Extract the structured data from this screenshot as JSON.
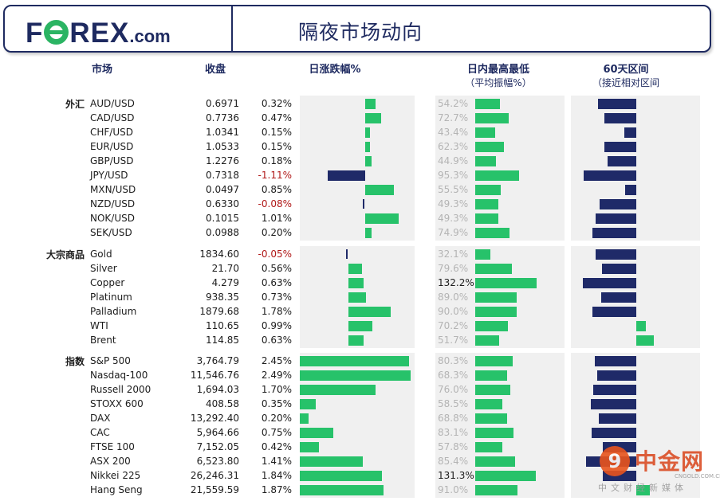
{
  "header": {
    "title": "隔夜市场动向",
    "logo_f": "F",
    "logo_rest": "REX",
    "logo_dotcom": ".com"
  },
  "columns": {
    "market": "市场",
    "close": "收盘",
    "daily_change": "日涨跌幅%",
    "intraday": "日内最高最低",
    "intraday_sub": "（平均振幅%）",
    "range60": "60天区间",
    "range60_sub": "（接近相对区间"
  },
  "colors": {
    "positive": "#27c26a",
    "negative_text": "#b01818",
    "navy": "#1f2a68",
    "panel": "#f0f0f0"
  },
  "chart_data": {
    "type": "table",
    "groups": [
      {
        "label": "外汇",
        "rows": [
          {
            "name": "AUD/USD",
            "close": "0.6971",
            "change": 0.32,
            "change_label": "0.32%",
            "range_pct": 54.2,
            "range_label": "54.2%",
            "pos60": 0.46
          },
          {
            "name": "CAD/USD",
            "close": "0.7736",
            "change": 0.47,
            "change_label": "0.47%",
            "range_pct": 72.7,
            "range_label": "72.7%",
            "pos60": 0.38
          },
          {
            "name": "CHF/USD",
            "close": "1.0341",
            "change": 0.15,
            "change_label": "0.15%",
            "range_pct": 43.4,
            "range_label": "43.4%",
            "pos60": 0.14
          },
          {
            "name": "EUR/USD",
            "close": "1.0533",
            "change": 0.15,
            "change_label": "0.15%",
            "range_pct": 62.3,
            "range_label": "62.3%",
            "pos60": 0.38
          },
          {
            "name": "GBP/USD",
            "close": "1.2276",
            "change": 0.18,
            "change_label": "0.18%",
            "range_pct": 44.9,
            "range_label": "44.9%",
            "pos60": 0.34
          },
          {
            "name": "JPY/USD",
            "close": "0.7318",
            "change": -1.11,
            "change_label": "-1.11%",
            "range_pct": 95.3,
            "range_label": "95.3%",
            "pos60": 0.63
          },
          {
            "name": "MXN/USD",
            "close": "0.0497",
            "change": 0.85,
            "change_label": "0.85%",
            "range_pct": 55.5,
            "range_label": "55.5%",
            "pos60": 0.13
          },
          {
            "name": "NZD/USD",
            "close": "0.6330",
            "change": -0.08,
            "change_label": "-0.08%",
            "range_pct": 49.3,
            "range_label": "49.3%",
            "pos60": 0.44
          },
          {
            "name": "NOK/USD",
            "close": "0.1015",
            "change": 1.01,
            "change_label": "1.01%",
            "range_pct": 49.3,
            "range_label": "49.3%",
            "pos60": 0.49
          },
          {
            "name": "SEK/USD",
            "close": "0.0988",
            "change": 0.2,
            "change_label": "0.20%",
            "range_pct": 74.9,
            "range_label": "74.9%",
            "pos60": 0.52
          }
        ]
      },
      {
        "label": "大宗商品",
        "rows": [
          {
            "name": "Gold",
            "close": "1834.60",
            "change": -0.05,
            "change_label": "-0.05%",
            "range_pct": 32.1,
            "range_label": "32.1%",
            "pos60": 0.49
          },
          {
            "name": "Silver",
            "close": "21.70",
            "change": 0.56,
            "change_label": "0.56%",
            "range_pct": 79.6,
            "range_label": "79.6%",
            "pos60": 0.41
          },
          {
            "name": "Copper",
            "close": "4.279",
            "change": 0.63,
            "change_label": "0.63%",
            "range_pct": 132.2,
            "range_label": "132.2%",
            "pos60": 0.64
          },
          {
            "name": "Platinum",
            "close": "938.35",
            "change": 0.73,
            "change_label": "0.73%",
            "range_pct": 89.0,
            "range_label": "89.0%",
            "pos60": 0.42
          },
          {
            "name": "Palladium",
            "close": "1879.68",
            "change": 1.78,
            "change_label": "1.78%",
            "range_pct": 90.0,
            "range_label": "90.0%",
            "pos60": 0.52
          },
          {
            "name": "WTI",
            "close": "110.65",
            "change": 0.99,
            "change_label": "0.99%",
            "range_pct": 70.2,
            "range_label": "70.2%",
            "pos60": -0.11
          },
          {
            "name": "Brent",
            "close": "114.85",
            "change": 0.63,
            "change_label": "0.63%",
            "range_pct": 51.7,
            "range_label": "51.7%",
            "pos60": -0.21
          }
        ]
      },
      {
        "label": "指数",
        "rows": [
          {
            "name": "S&P 500",
            "close": "3,764.79",
            "change": 2.45,
            "change_label": "2.45%",
            "range_pct": 80.3,
            "range_label": "80.3%",
            "pos60": 0.5
          },
          {
            "name": "Nasdaq-100",
            "close": "11,546.76",
            "change": 2.49,
            "change_label": "2.49%",
            "range_pct": 68.3,
            "range_label": "68.3%",
            "pos60": 0.47
          },
          {
            "name": "Russell 2000",
            "close": "1,694.03",
            "change": 1.7,
            "change_label": "1.70%",
            "range_pct": 76.0,
            "range_label": "76.0%",
            "pos60": 0.51
          },
          {
            "name": "STOXX 600",
            "close": "408.58",
            "change": 0.35,
            "change_label": "0.35%",
            "range_pct": 58.5,
            "range_label": "58.5%",
            "pos60": 0.54
          },
          {
            "name": "DAX",
            "close": "13,292.40",
            "change": 0.2,
            "change_label": "0.20%",
            "range_pct": 68.8,
            "range_label": "68.8%",
            "pos60": 0.45
          },
          {
            "name": "CAC",
            "close": "5,964.66",
            "change": 0.75,
            "change_label": "0.75%",
            "range_pct": 83.1,
            "range_label": "83.1%",
            "pos60": 0.53
          },
          {
            "name": "FTSE 100",
            "close": "7,152.05",
            "change": 0.42,
            "change_label": "0.42%",
            "range_pct": 57.8,
            "range_label": "57.8%",
            "pos60": 0.4
          },
          {
            "name": "ASX 200",
            "close": "6,523.80",
            "change": 1.41,
            "change_label": "1.41%",
            "range_pct": 85.4,
            "range_label": "85.4%",
            "pos60": 0.6
          },
          {
            "name": "Nikkei 225",
            "close": "26,246.31",
            "change": 1.84,
            "change_label": "1.84%",
            "range_pct": 131.3,
            "range_label": "131.3%",
            "pos60": 0.4
          },
          {
            "name": "Hang Seng",
            "close": "21,559.59",
            "change": 1.87,
            "change_label": "1.87%",
            "range_pct": 91.0,
            "range_label": "91.0%",
            "pos60": -0.16
          }
        ]
      }
    ]
  },
  "watermark": {
    "text": "中金网",
    "url": "CNGOLD.COM.CN",
    "sub": "中文财经新媒体"
  }
}
